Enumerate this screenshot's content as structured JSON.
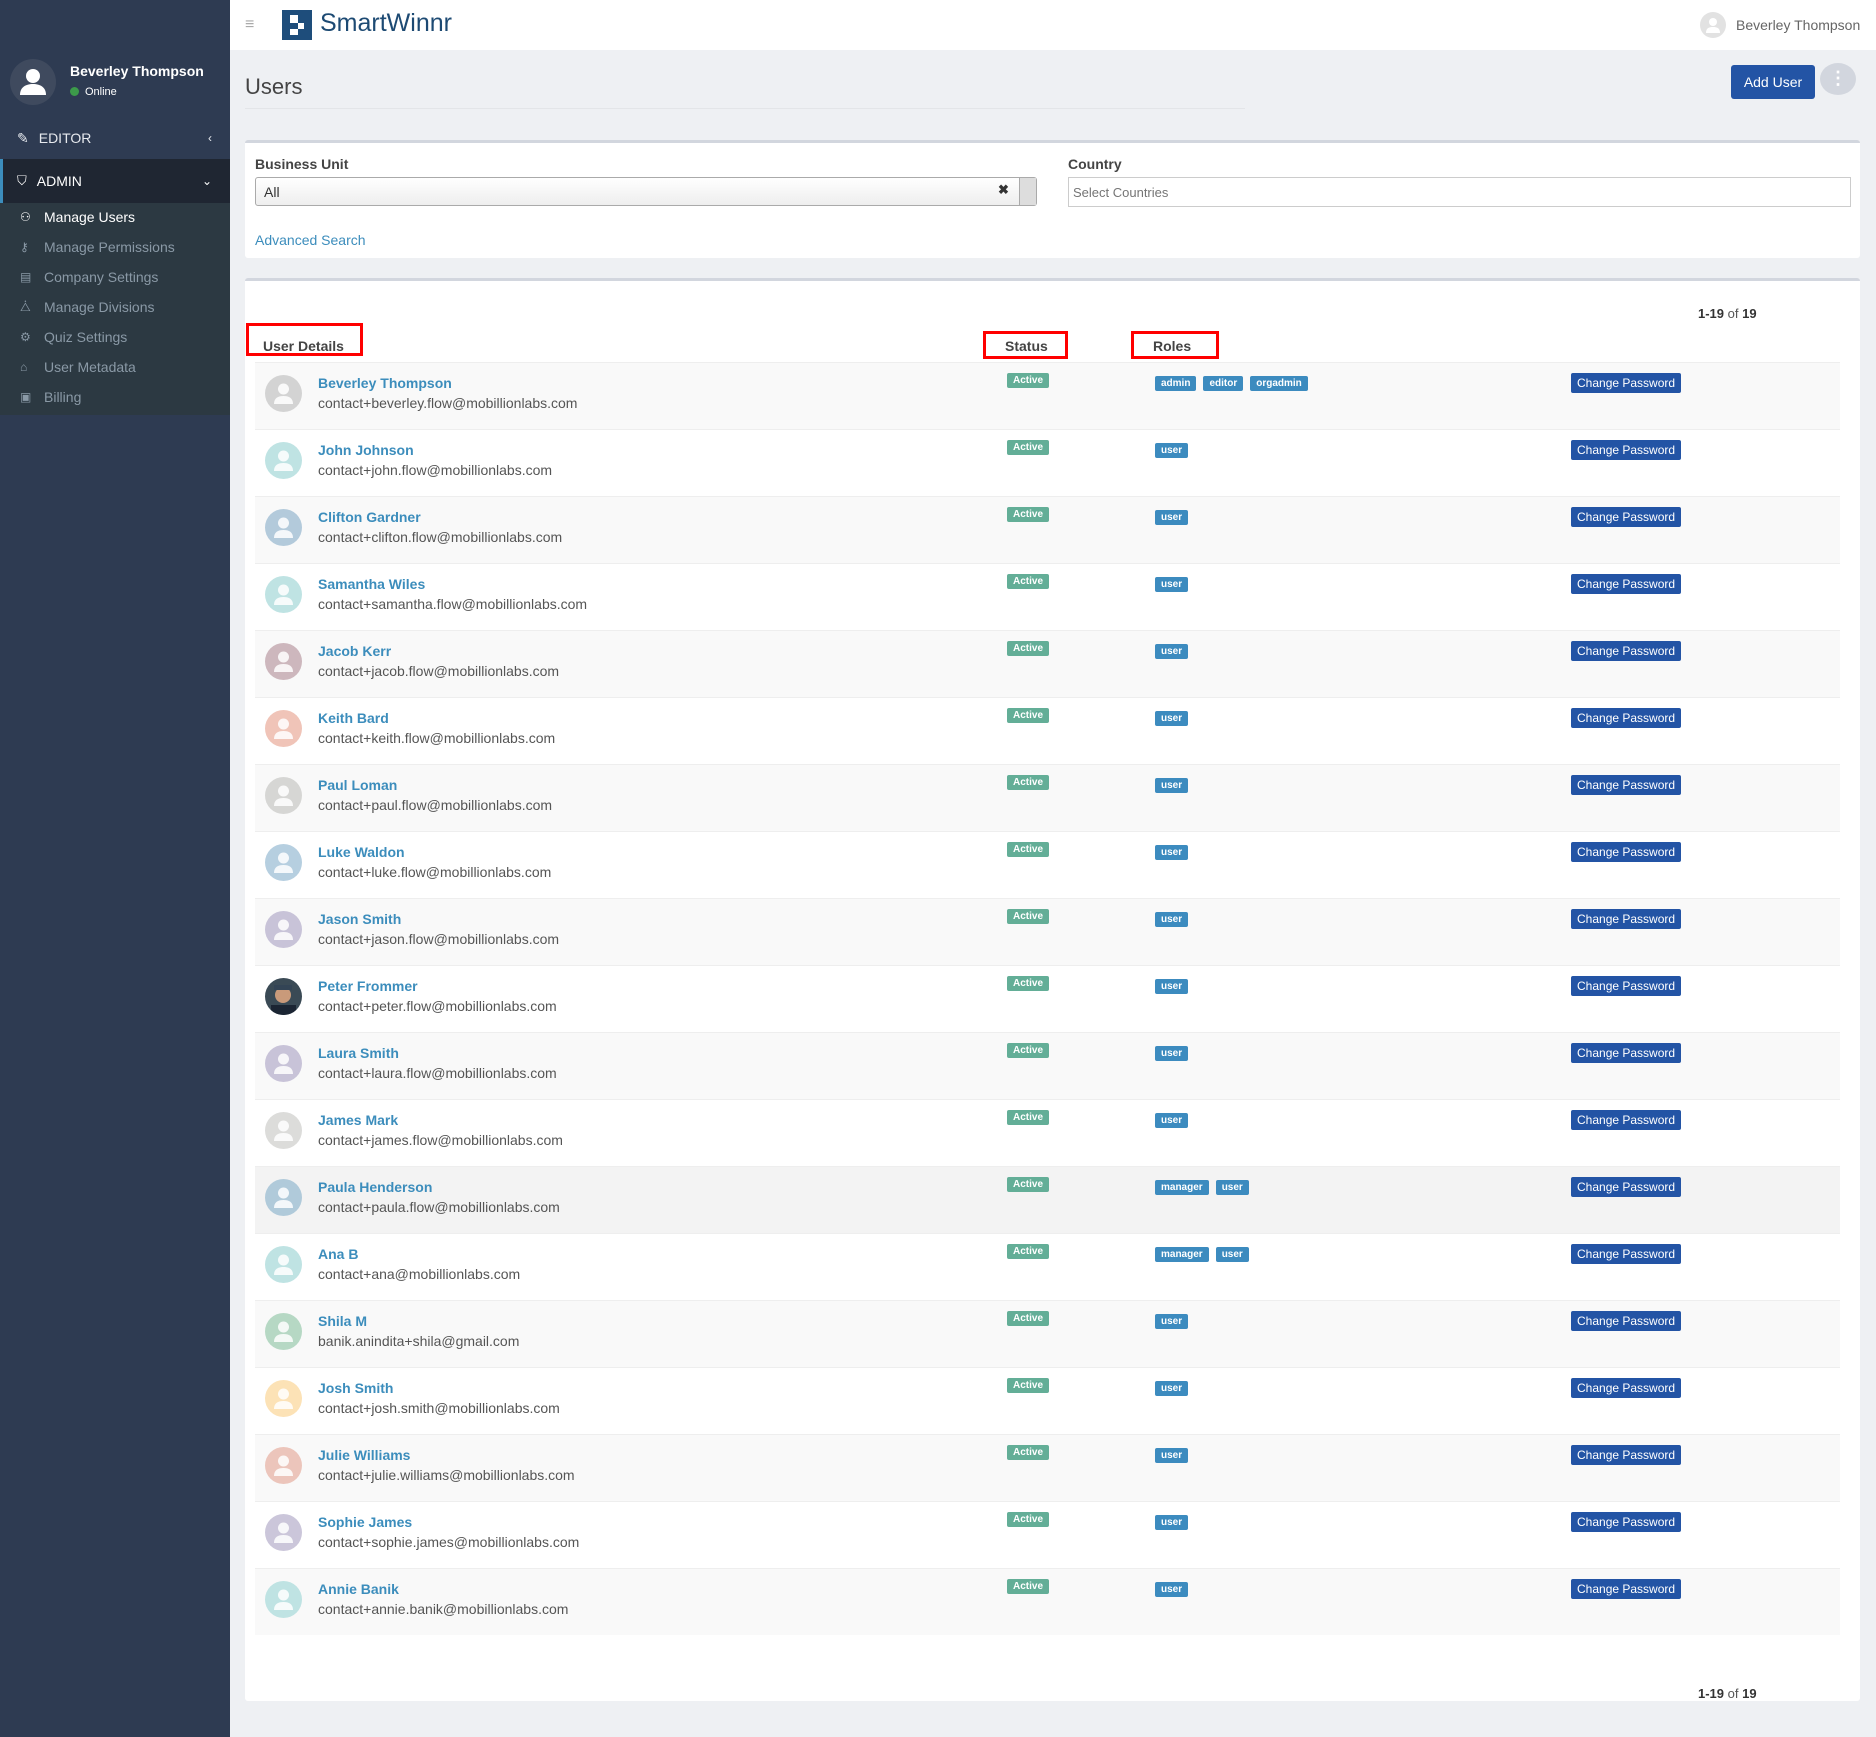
{
  "app": {
    "logo_text": "SmartWinnr",
    "header_user": "Beverley Thompson"
  },
  "sidebar": {
    "user_name": "Beverley Thompson",
    "status": "Online",
    "sections": [
      {
        "label": "EDITOR"
      },
      {
        "label": "ADMIN"
      }
    ],
    "items": [
      {
        "label": "Manage Users",
        "icon": "users-icon"
      },
      {
        "label": "Manage Permissions",
        "icon": "key-icon"
      },
      {
        "label": "Company Settings",
        "icon": "building-icon"
      },
      {
        "label": "Manage Divisions",
        "icon": "sitemap-icon"
      },
      {
        "label": "Quiz Settings",
        "icon": "gear-icon"
      },
      {
        "label": "User Metadata",
        "icon": "tag-icon"
      },
      {
        "label": "Billing",
        "icon": "invoice-icon"
      }
    ]
  },
  "page": {
    "title": "Users",
    "add_user": "Add User"
  },
  "filters": {
    "business_unit_label": "Business Unit",
    "business_unit_value": "All",
    "country_label": "Country",
    "country_placeholder": "Select Countries",
    "advanced_search": "Advanced Search"
  },
  "table": {
    "pagination": {
      "range": "1-19",
      "of": "of",
      "total": "19"
    },
    "headers": {
      "user_details": "User Details",
      "status": "Status",
      "roles": "Roles"
    },
    "change_password": "Change Password",
    "rows": [
      {
        "name": "Beverley Thompson",
        "email": "contact+beverley.flow@mobillionlabs.com",
        "status": "Active",
        "roles": [
          "admin",
          "editor",
          "orgadmin"
        ],
        "avatar_color": "#d3d3d3"
      },
      {
        "name": "John Johnson",
        "email": "contact+john.flow@mobillionlabs.com",
        "status": "Active",
        "roles": [
          "user"
        ],
        "avatar_color": "#bfe3e3"
      },
      {
        "name": "Clifton Gardner",
        "email": "contact+clifton.flow@mobillionlabs.com",
        "status": "Active",
        "roles": [
          "user"
        ],
        "avatar_color": "#b3cadb"
      },
      {
        "name": "Samantha Wiles",
        "email": "contact+samantha.flow@mobillionlabs.com",
        "status": "Active",
        "roles": [
          "user"
        ],
        "avatar_color": "#bfe3e3"
      },
      {
        "name": "Jacob Kerr",
        "email": "contact+jacob.flow@mobillionlabs.com",
        "status": "Active",
        "roles": [
          "user"
        ],
        "avatar_color": "#cdb7bd"
      },
      {
        "name": "Keith Bard",
        "email": "contact+keith.flow@mobillionlabs.com",
        "status": "Active",
        "roles": [
          "user"
        ],
        "avatar_color": "#f0c4b8"
      },
      {
        "name": "Paul Loman",
        "email": "contact+paul.flow@mobillionlabs.com",
        "status": "Active",
        "roles": [
          "user"
        ],
        "avatar_color": "#d6d6d4"
      },
      {
        "name": "Luke Waldon",
        "email": "contact+luke.flow@mobillionlabs.com",
        "status": "Active",
        "roles": [
          "user"
        ],
        "avatar_color": "#b6cfe0"
      },
      {
        "name": "Jason Smith",
        "email": "contact+jason.flow@mobillionlabs.com",
        "status": "Active",
        "roles": [
          "user"
        ],
        "avatar_color": "#c8c3d8"
      },
      {
        "name": "Peter Frommer",
        "email": "contact+peter.flow@mobillionlabs.com",
        "status": "Active",
        "roles": [
          "user"
        ],
        "avatar_color": "#2a3540",
        "photo": true
      },
      {
        "name": "Laura Smith",
        "email": "contact+laura.flow@mobillionlabs.com",
        "status": "Active",
        "roles": [
          "user"
        ],
        "avatar_color": "#c8c3d8"
      },
      {
        "name": "James Mark",
        "email": "contact+james.flow@mobillionlabs.com",
        "status": "Active",
        "roles": [
          "user"
        ],
        "avatar_color": "#dcdcda"
      },
      {
        "name": "Paula Henderson",
        "email": "contact+paula.flow@mobillionlabs.com",
        "status": "Active",
        "roles": [
          "manager",
          "user"
        ],
        "avatar_color": "#b0cada"
      },
      {
        "name": "Ana B",
        "email": "contact+ana@mobillionlabs.com",
        "status": "Active",
        "roles": [
          "manager",
          "user"
        ],
        "avatar_color": "#bfe3e3"
      },
      {
        "name": "Shila M",
        "email": "banik.anindita+shila@gmail.com",
        "status": "Active",
        "roles": [
          "user"
        ],
        "avatar_color": "#b6d8c4"
      },
      {
        "name": "Josh Smith",
        "email": "contact+josh.smith@mobillionlabs.com",
        "status": "Active",
        "roles": [
          "user"
        ],
        "avatar_color": "#fce2b6"
      },
      {
        "name": "Julie Williams",
        "email": "contact+julie.williams@mobillionlabs.com",
        "status": "Active",
        "roles": [
          "user"
        ],
        "avatar_color": "#ecc5bb"
      },
      {
        "name": "Sophie James",
        "email": "contact+sophie.james@mobillionlabs.com",
        "status": "Active",
        "roles": [
          "user"
        ],
        "avatar_color": "#cbc6da"
      },
      {
        "name": "Annie Banik",
        "email": "contact+annie.banik@mobillionlabs.com",
        "status": "Active",
        "roles": [
          "user"
        ],
        "avatar_color": "#bfe3e3"
      }
    ]
  },
  "colors": {
    "primary": "#2354a5",
    "link": "#3c8dbc",
    "active_badge": "#63ae97",
    "role_badge": "#3c8bbf",
    "sidebar": "#2e3b52"
  }
}
